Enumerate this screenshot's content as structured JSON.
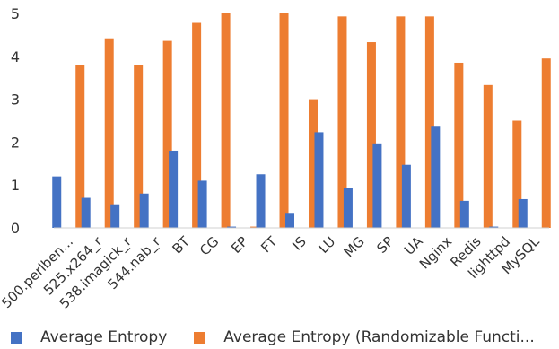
{
  "chart_data": {
    "type": "bar",
    "title": "",
    "xlabel": "",
    "ylabel": "",
    "ylim": [
      0,
      5
    ],
    "yticks": [
      0,
      1,
      2,
      3,
      4,
      5
    ],
    "grid": false,
    "legend_position": "bottom",
    "categories": [
      "500.perlben...",
      "525.x264_r",
      "538.imagick_r",
      "544.nab_r",
      "BT",
      "CG",
      "EP",
      "FT",
      "IS",
      "LU",
      "MG",
      "SP",
      "UA",
      "Nginx",
      "Redis",
      "lighttpd",
      "MySQL"
    ],
    "series": [
      {
        "name": "Average Entropy",
        "color": "#4472C4",
        "values": [
          1.2,
          0.7,
          0.55,
          0.8,
          1.8,
          1.1,
          0.03,
          1.25,
          0.35,
          2.23,
          0.93,
          1.97,
          1.47,
          2.38,
          0.63,
          0.03,
          0.67
        ]
      },
      {
        "name": "Average Entropy (Randomizable Functi...",
        "color": "#ED7D31",
        "values": [
          3.8,
          4.42,
          3.8,
          4.36,
          4.78,
          5.0,
          0.03,
          5.0,
          3.0,
          4.93,
          4.33,
          4.93,
          4.93,
          3.85,
          3.33,
          2.5,
          3.95
        ]
      }
    ]
  }
}
